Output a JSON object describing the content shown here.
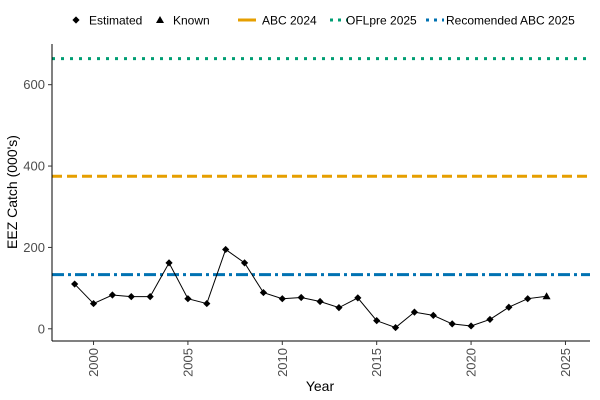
{
  "chart_data": {
    "type": "line",
    "xlabel": "Year",
    "ylabel": "EEZ Catch (000's)",
    "xlim": [
      1997.8,
      2026.3
    ],
    "ylim": [
      -30,
      700
    ],
    "x_ticks": [
      2000,
      2005,
      2010,
      2015,
      2020,
      2025
    ],
    "y_ticks": [
      0,
      200,
      400,
      600
    ],
    "grid": false,
    "legend_position": "top",
    "series": [
      {
        "name": "Estimated",
        "marker": "diamond",
        "color": "#000000",
        "x": [
          1999,
          2000,
          2001,
          2002,
          2003,
          2004,
          2005,
          2006,
          2007,
          2008,
          2009,
          2010,
          2011,
          2012,
          2013,
          2014,
          2015,
          2016,
          2017,
          2018,
          2019,
          2020,
          2021,
          2022,
          2023
        ],
        "y": [
          110,
          62,
          83,
          79,
          79,
          162,
          74,
          62,
          195,
          162,
          89,
          74,
          77,
          67,
          52,
          76,
          20,
          3,
          41,
          33,
          12,
          7,
          23,
          53,
          74
        ]
      },
      {
        "name": "Known",
        "marker": "triangle",
        "color": "#000000",
        "x": [
          2024
        ],
        "y": [
          80
        ]
      }
    ],
    "reference_lines": [
      {
        "name": "ABC 2024",
        "y": 375,
        "color": "#E69F00",
        "style": "dashed"
      },
      {
        "name": "OFLpre 2025",
        "y": 664,
        "color": "#009E73",
        "style": "dotted"
      },
      {
        "name": "Recomended ABC 2025",
        "y": 133,
        "color": "#0072B2",
        "style": "dotdash"
      }
    ]
  }
}
